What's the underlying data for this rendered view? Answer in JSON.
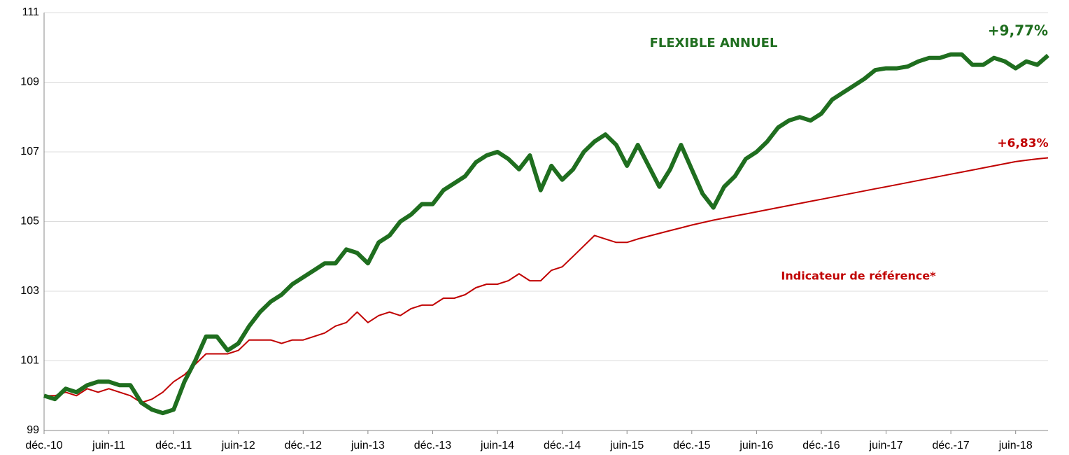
{
  "chart_data": {
    "type": "line",
    "categories": [
      "déc.-10",
      null,
      null,
      null,
      null,
      null,
      "juin-11",
      null,
      null,
      null,
      null,
      null,
      "déc.-11",
      null,
      null,
      null,
      null,
      null,
      "juin-12",
      null,
      null,
      null,
      null,
      null,
      "déc.-12",
      null,
      null,
      null,
      null,
      null,
      "juin-13",
      null,
      null,
      null,
      null,
      null,
      "déc.-13",
      null,
      null,
      null,
      null,
      null,
      "juin-14",
      null,
      null,
      null,
      null,
      null,
      "déc.-14",
      null,
      null,
      null,
      null,
      null,
      "juin-15",
      null,
      null,
      null,
      null,
      null,
      "déc.-15",
      null,
      null,
      null,
      null,
      null,
      "juin-16",
      null,
      null,
      null,
      null,
      null,
      "déc.-16",
      null,
      null,
      null,
      null,
      null,
      "juin-17",
      null,
      null,
      null,
      null,
      null,
      "déc.-17",
      null,
      null,
      null,
      null,
      null,
      "juin-18",
      null,
      null,
      null
    ],
    "series": [
      {
        "name": "FLEXIBLE ANNUEL",
        "color": "#1f6e1f",
        "values": [
          100.0,
          99.9,
          100.2,
          100.1,
          100.3,
          100.4,
          100.4,
          100.3,
          100.3,
          99.8,
          99.6,
          99.5,
          99.6,
          100.4,
          101.0,
          101.7,
          101.7,
          101.3,
          101.5,
          102.0,
          102.4,
          102.7,
          102.9,
          103.2,
          103.4,
          103.6,
          103.8,
          103.8,
          104.2,
          104.1,
          103.8,
          104.4,
          104.6,
          105.0,
          105.2,
          105.5,
          105.5,
          105.9,
          106.1,
          106.3,
          106.7,
          106.9,
          107.0,
          106.8,
          106.5,
          106.9,
          105.9,
          106.6,
          106.2,
          106.5,
          107.0,
          107.3,
          107.5,
          107.2,
          106.6,
          107.2,
          106.6,
          106.0,
          106.5,
          107.2,
          106.5,
          105.8,
          105.4,
          106.0,
          106.3,
          106.8,
          107.0,
          107.3,
          107.7,
          107.9,
          108.0,
          107.9,
          108.1,
          108.5,
          108.7,
          108.9,
          109.1,
          109.35,
          109.4,
          109.4,
          109.45,
          109.6,
          109.7,
          109.7,
          109.8,
          109.8,
          109.5,
          109.5,
          109.7,
          109.6,
          109.4,
          109.6,
          109.5,
          109.77
        ]
      },
      {
        "name": "Indicateur de référence*",
        "color": "#c00000",
        "values": [
          100.0,
          100.0,
          100.1,
          100.0,
          100.2,
          100.1,
          100.2,
          100.1,
          100.0,
          99.8,
          99.9,
          100.1,
          100.4,
          100.6,
          100.9,
          101.2,
          101.2,
          101.2,
          101.3,
          101.6,
          101.6,
          101.6,
          101.5,
          101.6,
          101.6,
          101.7,
          101.8,
          102.0,
          102.1,
          102.4,
          102.1,
          102.3,
          102.4,
          102.3,
          102.5,
          102.6,
          102.6,
          102.8,
          102.8,
          102.9,
          103.1,
          103.2,
          103.2,
          103.3,
          103.5,
          103.3,
          103.3,
          103.6,
          103.7,
          104.0,
          104.3,
          104.6,
          104.5,
          104.4,
          104.4,
          104.5,
          104.58,
          104.66,
          104.74,
          104.82,
          104.9,
          104.97,
          105.04,
          105.1,
          105.16,
          105.22,
          105.28,
          105.34,
          105.4,
          105.46,
          105.52,
          105.58,
          105.64,
          105.7,
          105.76,
          105.82,
          105.88,
          105.94,
          106.0,
          106.06,
          106.12,
          106.18,
          106.24,
          106.3,
          106.36,
          106.42,
          106.48,
          106.54,
          106.6,
          106.66,
          106.72,
          106.76,
          106.8,
          106.83
        ]
      }
    ],
    "annotations": [
      {
        "text": "FLEXIBLE ANNUEL",
        "color": "#1f6e1f"
      },
      {
        "text": "+9,77%",
        "color": "#1f6e1f"
      },
      {
        "text": "+6,83%",
        "color": "#c00000"
      },
      {
        "text": "Indicateur de référence*",
        "color": "#c00000"
      }
    ],
    "ylim": [
      99,
      111
    ],
    "yticks": [
      99,
      101,
      103,
      105,
      107,
      109,
      111
    ],
    "grid": true
  }
}
